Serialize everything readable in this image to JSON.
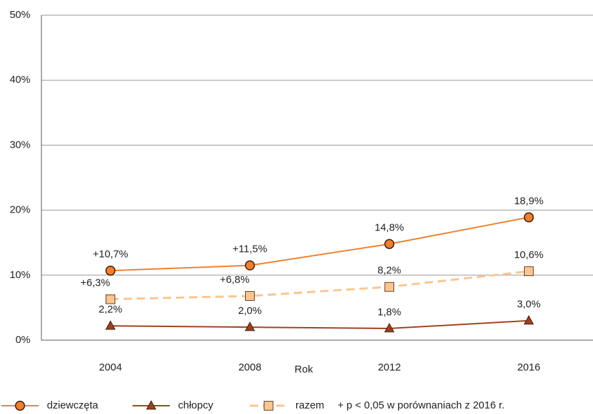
{
  "chart_data": {
    "type": "line",
    "x_label": "Rok",
    "categories": [
      "2004",
      "2008",
      "2012",
      "2016"
    ],
    "series": [
      {
        "name": "dziewczęta",
        "color": "#f07f2e",
        "marker": "circle",
        "dashed": false,
        "values": [
          10.7,
          11.5,
          14.8,
          18.9
        ],
        "value_labels": [
          "+10,7%",
          "+11,5%",
          "14,8%",
          "18,9%"
        ]
      },
      {
        "name": "chłopcy",
        "color": "#a0401f",
        "marker": "triangle",
        "dashed": false,
        "values": [
          2.2,
          2.0,
          1.8,
          3.0
        ],
        "value_labels": [
          "2,2%",
          "2,0%",
          "1,8%",
          "3,0%"
        ]
      },
      {
        "name": "razem",
        "color": "#fbc58f",
        "marker": "square",
        "dashed": true,
        "values": [
          6.3,
          6.8,
          8.2,
          10.6
        ],
        "value_labels": [
          "+6,3%",
          "+6,8%",
          "8,2%",
          "10,6%"
        ]
      }
    ],
    "note": "+ p < 0,05 w porównaniach z 2016 r.",
    "ylim": [
      0,
      50
    ],
    "yticks": [
      {
        "value": 0,
        "label": "0%"
      },
      {
        "value": 10,
        "label": "10%"
      },
      {
        "value": 20,
        "label": "20%"
      },
      {
        "value": 30,
        "label": "30%"
      },
      {
        "value": 40,
        "label": "40%"
      },
      {
        "value": 50,
        "label": "50%"
      }
    ],
    "grid": true
  }
}
